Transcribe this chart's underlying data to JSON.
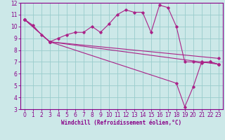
{
  "xlabel": "Windchill (Refroidissement éolien,°C)",
  "bg_color": "#cce8e8",
  "line_color": "#aa2288",
  "xlim": [
    -0.5,
    23.5
  ],
  "ylim": [
    3,
    12
  ],
  "xticks": [
    0,
    1,
    2,
    3,
    4,
    5,
    6,
    7,
    8,
    9,
    10,
    11,
    12,
    13,
    14,
    15,
    16,
    17,
    18,
    19,
    20,
    21,
    22,
    23
  ],
  "yticks": [
    3,
    4,
    5,
    6,
    7,
    8,
    9,
    10,
    11,
    12
  ],
  "line1_x": [
    0,
    1,
    2,
    3,
    4,
    5,
    6,
    7,
    8,
    9,
    10,
    11,
    12,
    13,
    14,
    15,
    16,
    17,
    18,
    19,
    20,
    21,
    22,
    23
  ],
  "line1_y": [
    10.6,
    10.1,
    9.3,
    8.7,
    9.0,
    9.3,
    9.5,
    9.5,
    10.0,
    9.5,
    10.2,
    11.0,
    11.4,
    11.2,
    11.2,
    9.5,
    11.8,
    11.6,
    10.0,
    7.0,
    7.0,
    6.9,
    7.0,
    6.8
  ],
  "line2_x": [
    0,
    3,
    23
  ],
  "line2_y": [
    10.6,
    8.7,
    6.8
  ],
  "line3_x": [
    0,
    3,
    23
  ],
  "line3_y": [
    10.6,
    8.7,
    7.3
  ],
  "line4_x": [
    0,
    3,
    18,
    19,
    20,
    21,
    22,
    23
  ],
  "line4_y": [
    10.6,
    8.7,
    5.2,
    3.2,
    4.9,
    7.0,
    7.0,
    6.8
  ],
  "spine_color": "#880088",
  "tick_color": "#880088",
  "label_color": "#880088",
  "grid_color": "#99cccc",
  "tick_fontsize": 5.5,
  "xlabel_fontsize": 5.5
}
